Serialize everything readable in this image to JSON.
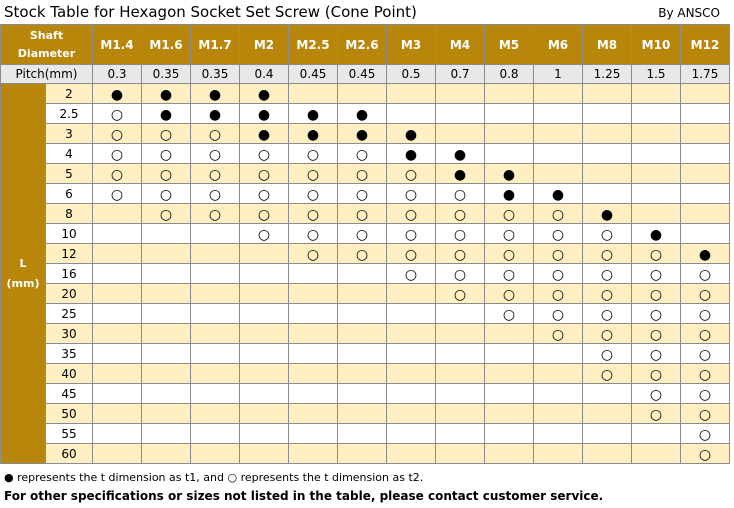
{
  "title": "Stock Table for Hexagon Socket Set Screw (Cone Point)",
  "byline": "By ANSCO",
  "header": {
    "shaft_label": "Shaft Diameter",
    "pitch_label": "Pitch(mm)",
    "l_label_line1": "L",
    "l_label_line2": "(mm)"
  },
  "columns": [
    {
      "size": "M1.4",
      "pitch": "0.3"
    },
    {
      "size": "M1.6",
      "pitch": "0.35"
    },
    {
      "size": "M1.7",
      "pitch": "0.35"
    },
    {
      "size": "M2",
      "pitch": "0.4"
    },
    {
      "size": "M2.5",
      "pitch": "0.45"
    },
    {
      "size": "M2.6",
      "pitch": "0.45"
    },
    {
      "size": "M3",
      "pitch": "0.5"
    },
    {
      "size": "M4",
      "pitch": "0.7"
    },
    {
      "size": "M5",
      "pitch": "0.8"
    },
    {
      "size": "M6",
      "pitch": "1"
    },
    {
      "size": "M8",
      "pitch": "1.25"
    },
    {
      "size": "M10",
      "pitch": "1.5"
    },
    {
      "size": "M12",
      "pitch": "1.75"
    }
  ],
  "symbols": {
    "filled": "●",
    "open": "○"
  },
  "rows": [
    {
      "length": "2",
      "cells": [
        "filled",
        "filled",
        "filled",
        "filled",
        "",
        "",
        "",
        "",
        "",
        "",
        "",
        "",
        ""
      ]
    },
    {
      "length": "2.5",
      "cells": [
        "open",
        "filled",
        "filled",
        "filled",
        "filled",
        "filled",
        "",
        "",
        "",
        "",
        "",
        "",
        ""
      ]
    },
    {
      "length": "3",
      "cells": [
        "open",
        "open",
        "open",
        "filled",
        "filled",
        "filled",
        "filled",
        "",
        "",
        "",
        "",
        "",
        ""
      ]
    },
    {
      "length": "4",
      "cells": [
        "open",
        "open",
        "open",
        "open",
        "open",
        "open",
        "filled",
        "filled",
        "",
        "",
        "",
        "",
        ""
      ]
    },
    {
      "length": "5",
      "cells": [
        "open",
        "open",
        "open",
        "open",
        "open",
        "open",
        "open",
        "filled",
        "filled",
        "",
        "",
        "",
        ""
      ]
    },
    {
      "length": "6",
      "cells": [
        "open",
        "open",
        "open",
        "open",
        "open",
        "open",
        "open",
        "open",
        "filled",
        "filled",
        "",
        "",
        ""
      ]
    },
    {
      "length": "8",
      "cells": [
        "",
        "open",
        "open",
        "open",
        "open",
        "open",
        "open",
        "open",
        "open",
        "open",
        "filled",
        "",
        ""
      ]
    },
    {
      "length": "10",
      "cells": [
        "",
        "",
        "",
        "open",
        "open",
        "open",
        "open",
        "open",
        "open",
        "open",
        "open",
        "filled",
        ""
      ]
    },
    {
      "length": "12",
      "cells": [
        "",
        "",
        "",
        "",
        "open",
        "open",
        "open",
        "open",
        "open",
        "open",
        "open",
        "open",
        "filled"
      ]
    },
    {
      "length": "16",
      "cells": [
        "",
        "",
        "",
        "",
        "",
        "",
        "open",
        "open",
        "open",
        "open",
        "open",
        "open",
        "open"
      ]
    },
    {
      "length": "20",
      "cells": [
        "",
        "",
        "",
        "",
        "",
        "",
        "",
        "open",
        "open",
        "open",
        "open",
        "open",
        "open"
      ]
    },
    {
      "length": "25",
      "cells": [
        "",
        "",
        "",
        "",
        "",
        "",
        "",
        "",
        "open",
        "open",
        "open",
        "open",
        "open"
      ]
    },
    {
      "length": "30",
      "cells": [
        "",
        "",
        "",
        "",
        "",
        "",
        "",
        "",
        "",
        "open",
        "open",
        "open",
        "open"
      ]
    },
    {
      "length": "35",
      "cells": [
        "",
        "",
        "",
        "",
        "",
        "",
        "",
        "",
        "",
        "",
        "open",
        "open",
        "open"
      ]
    },
    {
      "length": "40",
      "cells": [
        "",
        "",
        "",
        "",
        "",
        "",
        "",
        "",
        "",
        "",
        "open",
        "open",
        "open"
      ]
    },
    {
      "length": "45",
      "cells": [
        "",
        "",
        "",
        "",
        "",
        "",
        "",
        "",
        "",
        "",
        "",
        "open",
        "open"
      ]
    },
    {
      "length": "50",
      "cells": [
        "",
        "",
        "",
        "",
        "",
        "",
        "",
        "",
        "",
        "",
        "",
        "open",
        "open"
      ]
    },
    {
      "length": "55",
      "cells": [
        "",
        "",
        "",
        "",
        "",
        "",
        "",
        "",
        "",
        "",
        "",
        "",
        "open"
      ]
    },
    {
      "length": "60",
      "cells": [
        "",
        "",
        "",
        "",
        "",
        "",
        "",
        "",
        "",
        "",
        "",
        "",
        "open"
      ]
    }
  ],
  "note": "● represents the t dimension as t1, and ○ represents the t dimension as t2.",
  "contact": "For other specifications or sizes not listed in the table, please contact customer service."
}
